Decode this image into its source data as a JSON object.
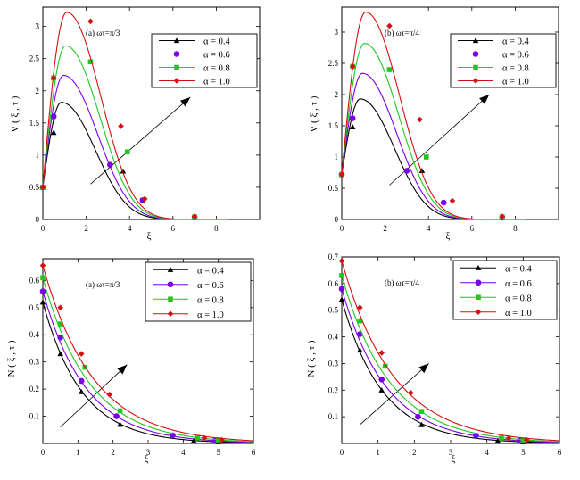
{
  "colors": {
    "series": [
      "#000000",
      "#7a00e6",
      "#1ec81e",
      "#d41010"
    ],
    "arrow": "#000000",
    "axis": "#000000",
    "background": "#ffffff"
  },
  "chart_data": [
    {
      "id": "a-top",
      "type": "line",
      "annotation": "(a)  ωτ=π/3",
      "xlabel": "ξ",
      "ylabel": "V ( ξ , τ )",
      "xlim": [
        0,
        10
      ],
      "ylim": [
        0,
        3.3
      ],
      "xticks": [
        "0",
        "2",
        "4",
        "6",
        "8"
      ],
      "xtick_values": [
        0,
        2,
        4,
        6,
        8
      ],
      "yticks": [
        "0",
        "0.5",
        "1",
        "1.5",
        "2",
        "2.5",
        "3"
      ],
      "ytick_values": [
        0,
        0.5,
        1,
        1.5,
        2,
        2.5,
        3
      ],
      "legend_position": "top-right",
      "arrow": {
        "from": [
          2.2,
          0.55
        ],
        "to": [
          6.8,
          1.9
        ]
      },
      "series": [
        {
          "name": "α = 0.4",
          "marker": "triangle",
          "peak_x": 0.85,
          "peak_y": 1.82,
          "start_y": 0.5,
          "decay": 0.75,
          "marker_x": [
            0,
            0.5,
            3.7,
            7.0
          ],
          "marker_y": [
            0.5,
            1.35,
            0.75,
            0.03
          ]
        },
        {
          "name": "α = 0.6",
          "marker": "circle",
          "peak_x": 0.95,
          "peak_y": 2.24,
          "start_y": 0.5,
          "decay": 0.78,
          "marker_x": [
            0,
            0.5,
            3.1,
            4.6,
            7.0
          ],
          "marker_y": [
            0.5,
            1.6,
            0.85,
            0.3,
            0.03
          ]
        },
        {
          "name": "α = 0.8",
          "marker": "square",
          "peak_x": 1.05,
          "peak_y": 2.7,
          "start_y": 0.5,
          "decay": 0.8,
          "marker_x": [
            0,
            0.5,
            2.2,
            3.9,
            7.0
          ],
          "marker_y": [
            0.5,
            2.2,
            2.45,
            1.05,
            0.04
          ]
        },
        {
          "name": "α = 1.0",
          "marker": "diamond",
          "peak_x": 1.1,
          "peak_y": 3.22,
          "start_y": 0.5,
          "decay": 0.82,
          "marker_x": [
            0,
            0.5,
            2.2,
            3.6,
            4.7,
            7.0
          ],
          "marker_y": [
            0.5,
            2.2,
            3.08,
            1.45,
            0.32,
            0.05
          ]
        }
      ]
    },
    {
      "id": "b-top",
      "type": "line",
      "annotation": "(b)  ωτ=π/4",
      "xlabel": "ξ",
      "ylabel": "V ( ξ , τ )",
      "xlim": [
        0,
        10
      ],
      "ylim": [
        0,
        3.4
      ],
      "xticks": [
        "0",
        "2",
        "4",
        "6",
        "8"
      ],
      "xtick_values": [
        0,
        2,
        4,
        6,
        8
      ],
      "yticks": [
        "0",
        "0.5",
        "1",
        "1.5",
        "2",
        "2.5",
        "3"
      ],
      "ytick_values": [
        0,
        0.5,
        1,
        1.5,
        2,
        2.5,
        3
      ],
      "legend_position": "top-right",
      "arrow": {
        "from": [
          2.2,
          0.55
        ],
        "to": [
          6.8,
          2.0
        ]
      },
      "series": [
        {
          "name": "α = 0.4",
          "marker": "triangle",
          "peak_x": 0.85,
          "peak_y": 1.93,
          "start_y": 0.72,
          "decay": 0.75,
          "marker_x": [
            0,
            0.5,
            3.7,
            7.4
          ],
          "marker_y": [
            0.72,
            1.48,
            0.78,
            0.03
          ]
        },
        {
          "name": "α = 0.6",
          "marker": "circle",
          "peak_x": 0.95,
          "peak_y": 2.34,
          "start_y": 0.72,
          "decay": 0.78,
          "marker_x": [
            0,
            0.5,
            3.0,
            4.7,
            7.4
          ],
          "marker_y": [
            0.72,
            1.62,
            0.78,
            0.27,
            0.03
          ]
        },
        {
          "name": "α = 0.8",
          "marker": "square",
          "peak_x": 1.05,
          "peak_y": 2.82,
          "start_y": 0.72,
          "decay": 0.8,
          "marker_x": [
            0,
            0.5,
            2.2,
            3.9,
            7.4
          ],
          "marker_y": [
            0.72,
            2.45,
            2.4,
            1.0,
            0.04
          ]
        },
        {
          "name": "α = 1.0",
          "marker": "diamond",
          "peak_x": 1.1,
          "peak_y": 3.32,
          "start_y": 0.72,
          "decay": 0.82,
          "marker_x": [
            0,
            0.5,
            2.2,
            3.6,
            5.1,
            7.4
          ],
          "marker_y": [
            0.72,
            2.45,
            3.1,
            1.6,
            0.3,
            0.05
          ]
        }
      ]
    },
    {
      "id": "a-bottom",
      "type": "line",
      "annotation": "(a)  ωτ=π/3",
      "xlabel": "ξ",
      "ylabel": "N ( ξ , τ )",
      "xlim": [
        0,
        6
      ],
      "ylim": [
        0,
        0.68
      ],
      "xticks": [
        "0",
        "1",
        "2",
        "3",
        "4",
        "5",
        "6"
      ],
      "xtick_values": [
        0,
        1,
        2,
        3,
        4,
        5,
        6
      ],
      "yticks": [
        "0.1",
        "0.2",
        "0.3",
        "0.4",
        "0.5",
        "0.6"
      ],
      "ytick_values": [
        0.1,
        0.2,
        0.3,
        0.4,
        0.5,
        0.6
      ],
      "legend_position": "top-right",
      "arrow": {
        "from": [
          0.5,
          0.06
        ],
        "to": [
          2.4,
          0.29
        ]
      },
      "series": [
        {
          "name": "α = 0.4",
          "marker": "triangle",
          "start_y": 0.52,
          "decay": 0.9,
          "marker_x": [
            0,
            0.5,
            1.1,
            2.2,
            4.3,
            5.0
          ],
          "marker_y": [
            0.52,
            0.33,
            0.19,
            0.07,
            0.01,
            0.006
          ]
        },
        {
          "name": "α = 0.6",
          "marker": "circle",
          "start_y": 0.56,
          "decay": 0.82,
          "marker_x": [
            0,
            0.5,
            1.1,
            2.1,
            3.7,
            4.9
          ],
          "marker_y": [
            0.56,
            0.39,
            0.23,
            0.1,
            0.03,
            0.01
          ]
        },
        {
          "name": "α = 0.8",
          "marker": "square",
          "start_y": 0.61,
          "decay": 0.76,
          "marker_x": [
            0,
            0.5,
            1.2,
            2.2,
            4.4,
            5.0
          ],
          "marker_y": [
            0.61,
            0.44,
            0.28,
            0.12,
            0.02,
            0.013
          ]
        },
        {
          "name": "α = 1.0",
          "marker": "diamond",
          "start_y": 0.655,
          "decay": 0.7,
          "marker_x": [
            0,
            0.5,
            1.1,
            1.9,
            4.6,
            5.1
          ],
          "marker_y": [
            0.655,
            0.5,
            0.33,
            0.18,
            0.02,
            0.013
          ]
        }
      ]
    },
    {
      "id": "b-bottom",
      "type": "line",
      "annotation": "(b)  ωτ=π/4",
      "xlabel": "ξ",
      "ylabel": "N ( ξ , τ )",
      "xlim": [
        0,
        6
      ],
      "ylim": [
        0,
        0.7
      ],
      "xticks": [
        "0",
        "1",
        "2",
        "3",
        "4",
        "5",
        "6"
      ],
      "xtick_values": [
        0,
        1,
        2,
        3,
        4,
        5,
        6
      ],
      "yticks": [
        "0.1",
        "0.2",
        "0.3",
        "0.4",
        "0.5",
        "0.6",
        "0.7"
      ],
      "ytick_values": [
        0.1,
        0.2,
        0.3,
        0.4,
        0.5,
        0.6,
        0.7
      ],
      "legend_position": "top-right",
      "arrow": {
        "from": [
          0.5,
          0.07
        ],
        "to": [
          2.4,
          0.3
        ]
      },
      "series": [
        {
          "name": "α = 0.4",
          "marker": "triangle",
          "start_y": 0.54,
          "decay": 0.9,
          "marker_x": [
            0,
            0.5,
            1.1,
            2.2,
            4.3,
            5.0
          ],
          "marker_y": [
            0.54,
            0.35,
            0.2,
            0.07,
            0.01,
            0.006
          ]
        },
        {
          "name": "α = 0.6",
          "marker": "circle",
          "start_y": 0.58,
          "decay": 0.82,
          "marker_x": [
            0,
            0.5,
            1.1,
            2.1,
            3.7,
            4.9
          ],
          "marker_y": [
            0.58,
            0.41,
            0.24,
            0.1,
            0.03,
            0.01
          ]
        },
        {
          "name": "α = 0.8",
          "marker": "square",
          "start_y": 0.63,
          "decay": 0.76,
          "marker_x": [
            0,
            0.5,
            1.2,
            2.2,
            4.4,
            5.0
          ],
          "marker_y": [
            0.63,
            0.46,
            0.29,
            0.12,
            0.02,
            0.013
          ]
        },
        {
          "name": "α = 1.0",
          "marker": "diamond",
          "start_y": 0.685,
          "decay": 0.7,
          "marker_x": [
            0,
            0.5,
            1.1,
            1.9,
            4.6,
            5.1
          ],
          "marker_y": [
            0.685,
            0.51,
            0.34,
            0.19,
            0.02,
            0.013
          ]
        }
      ]
    }
  ]
}
